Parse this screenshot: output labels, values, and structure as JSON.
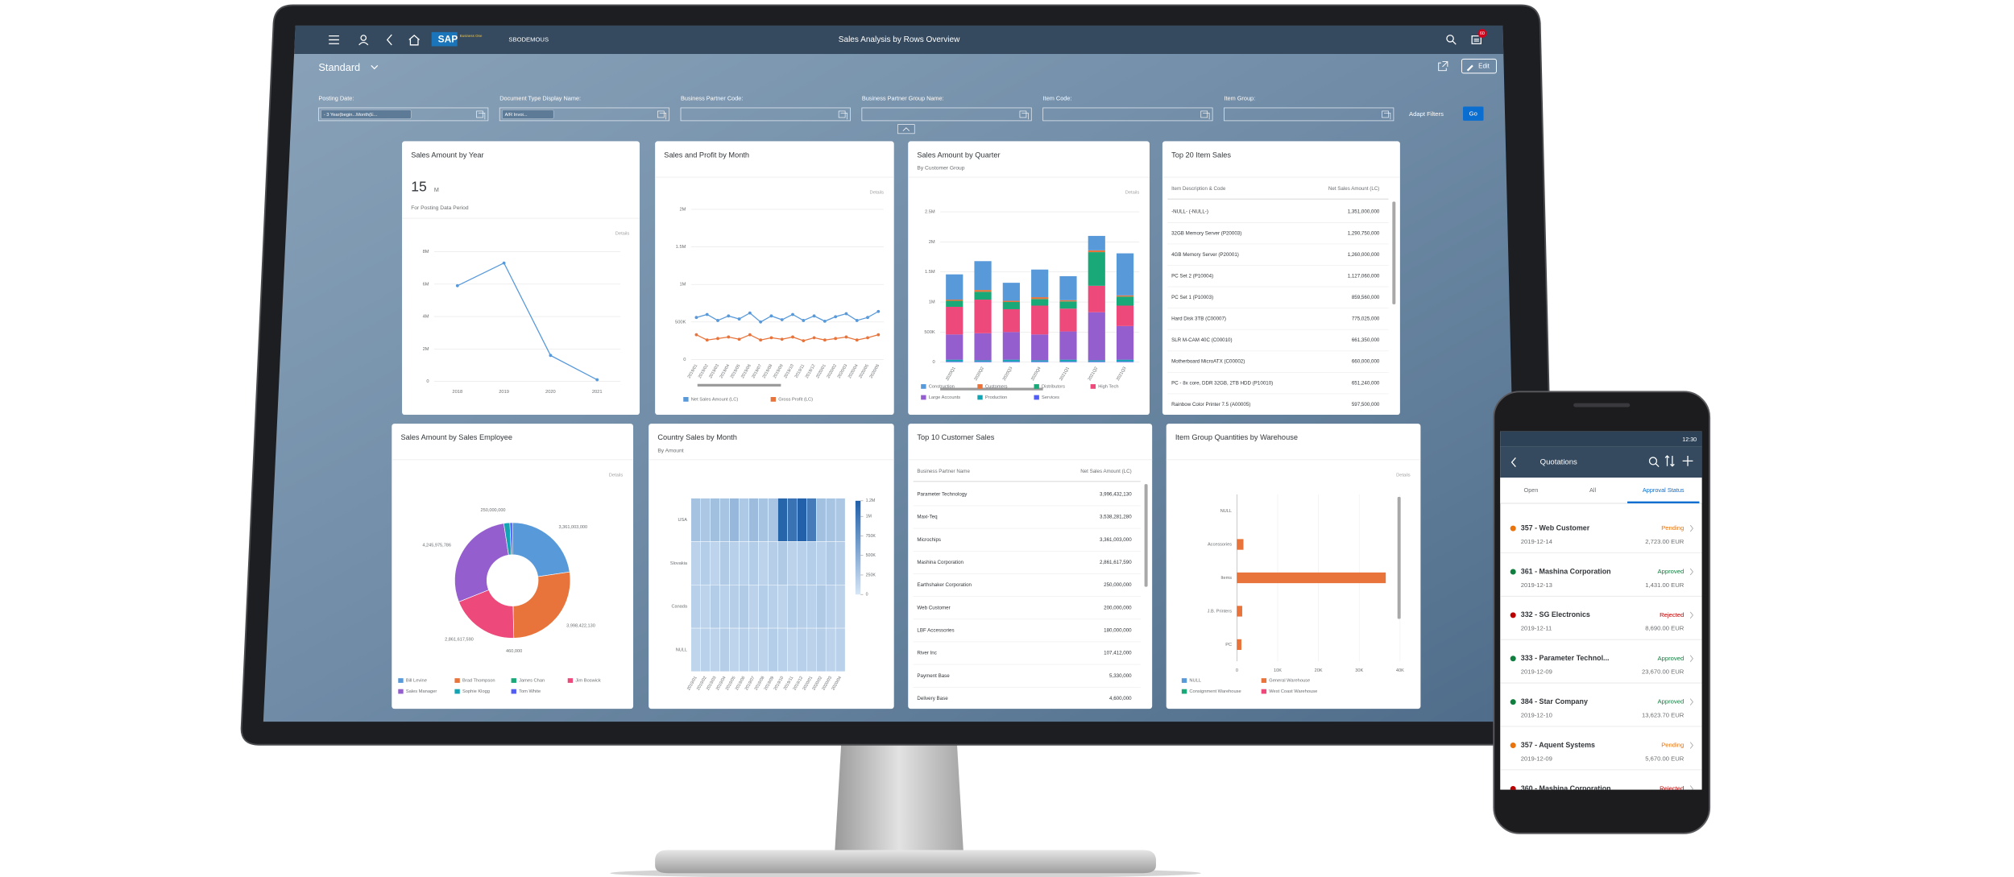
{
  "monitor": {
    "header": {
      "company": "SBODEMOUS",
      "logo": "SAP",
      "logo_sub": "Business One",
      "title": "Sales Analysis by Rows Overview",
      "badge": "60"
    },
    "variant": "Standard",
    "edit": "Edit",
    "filters": [
      {
        "label": "Posting Date:",
        "value": "- 3 Year(begin...Month(E..."
      },
      {
        "label": "Document Type Display Name:",
        "value": "A/R Invoi..."
      },
      {
        "label": "Business Partner Code:"
      },
      {
        "label": "Business Partner Group Name:"
      },
      {
        "label": "Item Code:"
      },
      {
        "label": "Item Group:"
      }
    ],
    "adapt_filters": "Adapt Filters",
    "go": "Go",
    "cards": [
      {
        "type": "line",
        "title": "Sales Amount by Year",
        "kpi": "15",
        "kpi_unit": "M",
        "kpi_caption": "For Posting Data Period",
        "details": "Details",
        "categories": [
          "2018",
          "2019",
          "2020",
          "2021"
        ],
        "values": [
          5.9,
          7.3,
          1.6,
          0.1
        ],
        "color": "#5899da",
        "ylim": [
          0,
          8
        ],
        "yticks": [
          0,
          {
            "value": 2,
            "label": "2M"
          },
          {
            "value": 4,
            "label": "4M"
          },
          {
            "value": 6,
            "label": "6M"
          },
          {
            "value": 8,
            "label": "8M"
          }
        ]
      },
      {
        "type": "line",
        "title": "Sales and Profit by Month",
        "details": "Details",
        "categories": [
          "2019/01",
          "2019/02",
          "2019/03",
          "2019/04",
          "2019/05",
          "2019/06",
          "2019/07",
          "2019/08",
          "2019/09",
          "2019/10",
          "2019/11",
          "2019/12",
          "2020/01",
          "2020/02",
          "2020/03",
          "2020/04",
          "2020/05",
          "2020/06"
        ],
        "series": [
          {
            "name": "Net Sales Amount (LC)",
            "color": "#5899da",
            "values": [
              560000,
              600000,
              520000,
              580000,
              540000,
              620000,
              500000,
              580000,
              530000,
              600000,
              520000,
              580000,
              510000,
              570000,
              610000,
              520000,
              560000,
              640000
            ]
          },
          {
            "name": "Gross Profit (LC)",
            "color": "#e8743b",
            "values": [
              330000,
              260000,
              280000,
              300000,
              270000,
              330000,
              260000,
              290000,
              270000,
              300000,
              250000,
              290000,
              260000,
              280000,
              300000,
              260000,
              290000,
              330000
            ]
          }
        ],
        "ylim": [
          0,
          2000000
        ],
        "yticks": [
          0,
          {
            "value": 500000,
            "label": "500K"
          },
          {
            "value": 1000000,
            "label": "1M"
          },
          {
            "value": 1500000,
            "label": "1.5M"
          },
          {
            "value": 2000000,
            "label": "2M"
          }
        ]
      },
      {
        "type": "bar",
        "title": "Sales Amount by Quarter",
        "subtitle": "By Customer Group",
        "details": "Details",
        "categories": [
          "2020Q1",
          "2020Q2",
          "2020Q3",
          "2020Q4",
          "2021Q1",
          "2021Q2",
          "2021Q3"
        ],
        "series": [
          {
            "name": "Construction",
            "color": "#5899da",
            "values": [
              420000,
              480000,
              300000,
              460000,
              400000,
              240000,
              700000
            ]
          },
          {
            "name": "Customers",
            "color": "#e8743b",
            "values": [
              20000,
              30000,
              20000,
              30000,
              20000,
              30000,
              20000
            ]
          },
          {
            "name": "Distributors",
            "color": "#19a979",
            "values": [
              100000,
              130000,
              120000,
              110000,
              120000,
              560000,
              150000
            ]
          },
          {
            "name": "High Tech",
            "color": "#ed4a7b",
            "values": [
              460000,
              560000,
              380000,
              480000,
              380000,
              440000,
              340000
            ]
          },
          {
            "name": "Large Accounts",
            "color": "#945ecf",
            "values": [
              420000,
              450000,
              460000,
              430000,
              470000,
              800000,
              560000
            ]
          },
          {
            "name": "Production",
            "color": "#13a4b4",
            "values": [
              30000,
              20000,
              30000,
              20000,
              30000,
              20000,
              30000
            ]
          },
          {
            "name": "Services",
            "color": "#525df4",
            "values": [
              10000,
              10000,
              10000,
              10000,
              10000,
              10000,
              10000
            ]
          }
        ],
        "ylim": [
          0,
          2500000
        ],
        "yticks": [
          0,
          {
            "value": 500000,
            "label": "500K"
          },
          {
            "value": 1000000,
            "label": "1M"
          },
          {
            "value": 1500000,
            "label": "1.5M"
          },
          {
            "value": 2000000,
            "label": "2M"
          },
          {
            "value": 2500000,
            "label": "2.5M"
          }
        ]
      },
      {
        "type": "table",
        "title": "Top 20 Item Sales",
        "columns": [
          "Item Description & Code",
          "Net Sales Amount (LC)"
        ],
        "rows": [
          [
            "-NULL- (-NULL-)",
            "1,351,000,000"
          ],
          [
            "32GB Memory Server (P20003)",
            "1,290,750,000"
          ],
          [
            "4GB Memory Server (P20001)",
            "1,260,000,000"
          ],
          [
            "PC Set 2 (P10004)",
            "1,127,060,000"
          ],
          [
            "PC Set 1 (P10003)",
            "859,560,000"
          ],
          [
            "Hard Disk 3TB (C00007)",
            "775,025,000"
          ],
          [
            "SLR M-CAM 40C (C00010)",
            "661,350,000"
          ],
          [
            "Motherboard MicroATX (C00002)",
            "660,000,000"
          ],
          [
            "PC - 8x core, DDR 32GB, 2TB HDD (P10010)",
            "651,240,000"
          ],
          [
            "Rainbow Color Printer 7.5 (A00005)",
            "597,500,000"
          ]
        ]
      },
      {
        "type": "pie",
        "title": "Sales Amount by Sales Employee",
        "details": "Details",
        "categories": [
          "Bill Levine",
          "Brad Thompson",
          "James Chan",
          "Jim Boswick",
          "Sales Manager",
          "Sophie Klogg",
          "Tom White"
        ],
        "values": [
          3361003000,
          3998422130,
          460000,
          2861617590,
          4245975786,
          250000000,
          107412000
        ],
        "value_labels": [
          "3,361,003,000",
          "3,998,422,130",
          "460,000",
          "2,861,617,590",
          "4,245,975,786",
          "250,000,000",
          null
        ],
        "colors": [
          "#5899da",
          "#e8743b",
          "#19a979",
          "#ed4a7b",
          "#945ecf",
          "#13a4b4",
          "#525df4"
        ]
      },
      {
        "type": "heatmap",
        "title": "Country Sales by Month",
        "subtitle": "By Amount",
        "rows": [
          "USA",
          "Slovakia",
          "Canada",
          "NULL"
        ],
        "categories": [
          "2019/01",
          "2019/02",
          "2019/03",
          "2019/04",
          "2019/05",
          "2019/06",
          "2019/07",
          "2019/08",
          "2019/09",
          "2019/10",
          "2019/11",
          "2019/12",
          "2020/01",
          "2020/02",
          "2020/03",
          "2020/04"
        ],
        "values": [
          [
            320000,
            280000,
            350000,
            300000,
            410000,
            260000,
            380000,
            300000,
            290000,
            1150000,
            1020000,
            1180000,
            950000,
            340000,
            300000,
            280000
          ],
          [
            180000,
            220000,
            160000,
            240000,
            200000,
            190000,
            230000,
            170000,
            210000,
            250000,
            180000,
            200000,
            220000,
            190000,
            240000,
            210000
          ],
          [
            200000,
            170000,
            230000,
            190000,
            210000,
            240000,
            180000,
            220000,
            200000,
            170000,
            230000,
            210000,
            190000,
            250000,
            200000,
            180000
          ],
          [
            150000,
            190000,
            170000,
            210000,
            160000,
            200000,
            180000,
            170000,
            220000,
            190000,
            160000,
            200000,
            180000,
            210000,
            170000,
            190000
          ]
        ],
        "colors": [
          "#d6e6f6",
          "#1f5fa8"
        ],
        "zlim": [
          0,
          1200000
        ],
        "zticks": [
          {
            "value": 1200000,
            "label": "1.2M"
          },
          {
            "value": 1000000,
            "label": "1M"
          },
          {
            "value": 750000,
            "label": "750K"
          },
          {
            "value": 500000,
            "label": "500K"
          },
          {
            "value": 250000,
            "label": "250K"
          },
          0
        ]
      },
      {
        "type": "table",
        "title": "Top 10 Customer Sales",
        "columns": [
          "Business Partner Name",
          "Net Sales Amount (LC)"
        ],
        "rows": [
          [
            "Parameter Technology",
            "3,996,432,130"
          ],
          [
            "Maxi-Teq",
            "3,538,281,280"
          ],
          [
            "Microchips",
            "3,361,003,000"
          ],
          [
            "Mashina Corporation",
            "2,861,617,590"
          ],
          [
            "Earthshaker Corporation",
            "250,000,000"
          ],
          [
            "Web Customer",
            "200,000,000"
          ],
          [
            "LBF Accessories",
            "180,000,000"
          ],
          [
            "River Inc",
            "107,412,000"
          ],
          [
            "Payment Base",
            "5,330,000"
          ],
          [
            "Delivery Base",
            "4,600,000"
          ]
        ]
      },
      {
        "type": "hbar",
        "title": "Item Group Quantities by Warehouse",
        "details": "Details",
        "categories": [
          "NULL",
          "Accessories",
          "Items",
          "J.B. Printers",
          "PC"
        ],
        "series": [
          {
            "name": "NULL",
            "color": "#5899da",
            "values": [
              0,
              0,
              0,
              0,
              0
            ]
          },
          {
            "name": "General Warehouse",
            "color": "#e8743b",
            "values": [
              0,
              1600,
              36500,
              1300,
              1100
            ]
          },
          {
            "name": "Consignment Warehouse",
            "color": "#19a979",
            "values": [
              0,
              0,
              0,
              0,
              0
            ]
          },
          {
            "name": "West Coast Warehouse",
            "color": "#ed4a7b",
            "values": [
              0,
              0,
              0,
              0,
              0
            ]
          }
        ],
        "xlim": [
          0,
          40000
        ],
        "xticks": [
          0,
          {
            "value": 10000,
            "label": "10K"
          },
          {
            "value": 20000,
            "label": "20K"
          },
          {
            "value": 30000,
            "label": "30K"
          },
          {
            "value": 40000,
            "label": "40K"
          }
        ]
      }
    ]
  },
  "phone": {
    "time": "12:30",
    "title": "Quotations",
    "tabs": [
      "Open",
      "All",
      "Approval Status"
    ],
    "selected_tab": 2,
    "items": [
      {
        "name": "357 - Web Customer",
        "date": "2019-12-14",
        "status": "Pending",
        "amount": "2,723.00 EUR",
        "color": "#e9730c"
      },
      {
        "name": "361 - Mashina Corporation",
        "date": "2019-12-13",
        "status": "Approved",
        "amount": "1,431.00 EUR",
        "color": "#107e3e"
      },
      {
        "name": "332 - SG Electronics",
        "date": "2019-12-11",
        "status": "Rejected",
        "amount": "8,690.00 EUR",
        "color": "#bb0000"
      },
      {
        "name": "333 - Parameter Technol...",
        "date": "2019-12-09",
        "status": "Approved",
        "amount": "23,670.00 EUR",
        "color": "#107e3e"
      },
      {
        "name": "384 - Star Company",
        "date": "2019-12-10",
        "status": "Approved",
        "amount": "13,623.70 EUR",
        "color": "#107e3e"
      },
      {
        "name": "357 - Aquent Systems",
        "date": "2019-12-09",
        "status": "Pending",
        "amount": "5,670.00 EUR",
        "color": "#e9730c"
      },
      {
        "name": "360 - Mashina Corporation",
        "status": "Rejected",
        "color": "#bb0000"
      }
    ]
  }
}
